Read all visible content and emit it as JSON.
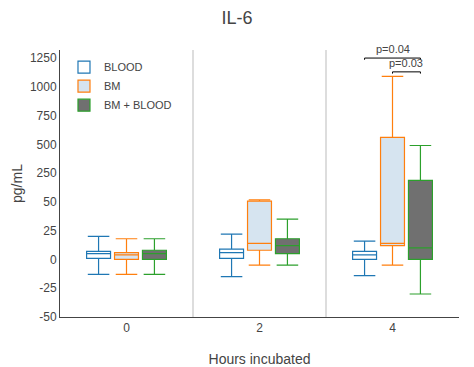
{
  "chart_data": {
    "type": "box",
    "title": "IL-6",
    "x_label": "Hours incubated",
    "y_label": "pg/mL",
    "categories": [
      "0",
      "2",
      "4"
    ],
    "series": [
      {
        "name": "BLOOD",
        "color": "#ffffff",
        "q1": [
          1,
          1,
          0
        ],
        "median": [
          5,
          6,
          4
        ],
        "q3": [
          7,
          9,
          7
        ],
        "whisker_low": [
          -13,
          -15,
          -14
        ],
        "whisker_high": [
          20,
          22,
          16
        ]
      },
      {
        "name": "BM",
        "color": "#d6e4f0",
        "q1": [
          0,
          8,
          12
        ],
        "median": [
          4,
          14,
          14
        ],
        "q3": [
          6,
          55,
          560
        ],
        "whisker_low": [
          -13,
          -5,
          -5
        ],
        "whisker_high": [
          18,
          65,
          1090
        ]
      },
      {
        "name": "BM + BLOOD",
        "color": "#707070",
        "q1": [
          0,
          5,
          0
        ],
        "median": [
          5,
          12,
          10
        ],
        "q3": [
          8,
          18,
          200
        ],
        "whisker_low": [
          -13,
          -5,
          -30
        ],
        "whisker_high": [
          18,
          35,
          490
        ]
      }
    ],
    "ylim": [
      -50,
      1320
    ],
    "yticks": [
      -50,
      -25,
      0,
      25,
      50,
      250,
      500,
      750,
      1000,
      1250
    ],
    "grid": false,
    "legend": "upper left",
    "annotations": [
      {
        "text": "p=0.03",
        "category": "4",
        "from": "BM",
        "to": "BM + BLOOD",
        "y": 1130
      },
      {
        "text": "p=0.04",
        "category": "4",
        "from": "BLOOD",
        "to": "BM + BLOOD",
        "y": 1250
      }
    ]
  }
}
